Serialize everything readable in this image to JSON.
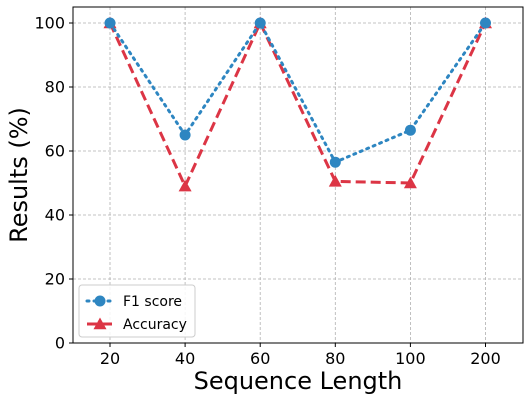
{
  "chart_data": {
    "type": "line",
    "xlabel": "Sequence Length",
    "ylabel": "Results (%)",
    "categories": [
      "20",
      "40",
      "60",
      "80",
      "100",
      "200"
    ],
    "ylim": [
      0,
      105
    ],
    "yticks": [
      0,
      20,
      40,
      60,
      80,
      100
    ],
    "grid": true,
    "legend_position": "lower-left",
    "series": [
      {
        "name": "F1 score",
        "values": [
          100,
          65,
          100,
          56.5,
          66.5,
          100
        ],
        "color": "#2e86c1",
        "line_style": "dotted",
        "marker": "circle"
      },
      {
        "name": "Accuracy",
        "values": [
          100,
          49,
          100,
          50.5,
          50,
          100
        ],
        "color": "#dc3545",
        "line_style": "dashed",
        "marker": "triangle"
      }
    ]
  }
}
